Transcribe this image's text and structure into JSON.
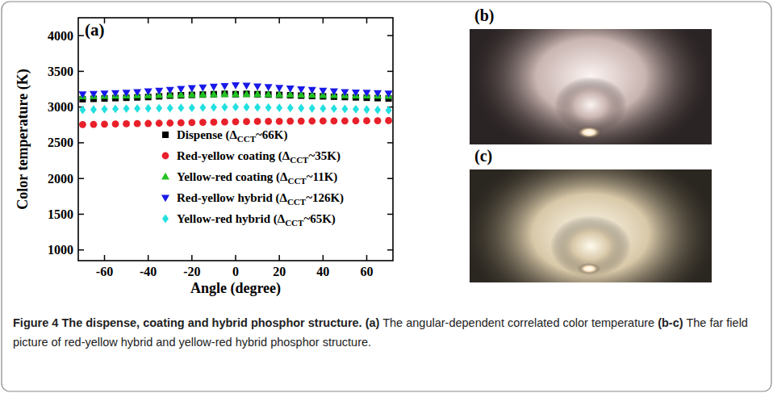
{
  "chart_data": {
    "type": "scatter",
    "x_label": "Angle (degree)",
    "y_label": "Color temperature (K)",
    "x": [
      -70,
      -65,
      -60,
      -55,
      -50,
      -45,
      -40,
      -35,
      -30,
      -25,
      -20,
      -15,
      -10,
      -5,
      0,
      5,
      10,
      15,
      20,
      25,
      30,
      35,
      40,
      45,
      50,
      55,
      60,
      65,
      70
    ],
    "xlim": [
      -72,
      72
    ],
    "xticks": [
      -60,
      -40,
      -20,
      0,
      20,
      40,
      60
    ],
    "ylim": [
      850,
      4250
    ],
    "yticks": [
      1000,
      1500,
      2000,
      2500,
      3000,
      3500,
      4000
    ],
    "grid": false,
    "legend": "center left",
    "series": [
      {
        "name": "Dispense (ΔCCT~66K)",
        "color": "#000000",
        "marker": "square",
        "values": [
          3110,
          3115,
          3120,
          3125,
          3130,
          3135,
          3140,
          3150,
          3160,
          3165,
          3170,
          3175,
          3180,
          3185,
          3180,
          3185,
          3180,
          3175,
          3170,
          3165,
          3160,
          3155,
          3150,
          3145,
          3140,
          3135,
          3130,
          3125,
          3120
        ]
      },
      {
        "name": "Red-yellow coating (ΔCCT~35K)",
        "color": "#e8202a",
        "marker": "circle",
        "values": [
          2755,
          2758,
          2760,
          2763,
          2765,
          2768,
          2770,
          2773,
          2776,
          2780,
          2783,
          2786,
          2789,
          2792,
          2795,
          2797,
          2799,
          2800,
          2801,
          2802,
          2803,
          2804,
          2805,
          2806,
          2806,
          2807,
          2808,
          2809,
          2810
        ]
      },
      {
        "name": "Yellow-red coating (ΔCCT~11K)",
        "color": "#22c322",
        "marker": "triangle-up",
        "values": [
          3150,
          3152,
          3155,
          3158,
          3160,
          3163,
          3165,
          3168,
          3170,
          3172,
          3174,
          3176,
          3178,
          3180,
          3180,
          3181,
          3180,
          3178,
          3176,
          3174,
          3172,
          3170,
          3168,
          3166,
          3164,
          3162,
          3160,
          3158,
          3156
        ]
      },
      {
        "name": "Red-yellow hybrid (ΔCCT~126K)",
        "color": "#1818e8",
        "marker": "triangle-down",
        "values": [
          3180,
          3185,
          3190,
          3195,
          3200,
          3210,
          3220,
          3230,
          3240,
          3255,
          3265,
          3275,
          3285,
          3295,
          3305,
          3300,
          3290,
          3280,
          3270,
          3260,
          3250,
          3240,
          3230,
          3220,
          3210,
          3205,
          3200,
          3195,
          3190
        ]
      },
      {
        "name": "Yellow-red hybrid (ΔCCT~65K)",
        "color": "#22e0e0",
        "marker": "diamond",
        "values": [
          2960,
          2965,
          2970,
          2975,
          2978,
          2980,
          2982,
          2984,
          2986,
          2988,
          2990,
          2992,
          2995,
          2998,
          3000,
          2998,
          2995,
          2992,
          2990,
          2988,
          2985,
          2982,
          2980,
          2978,
          2975,
          2970,
          2965,
          2960,
          2955
        ]
      }
    ]
  },
  "panel_labels": [
    "(a)",
    "(b)",
    "(c)"
  ],
  "caption": {
    "label": "Figure 4",
    "title": "The dispense, coating and hybrid phosphor structure.",
    "items": [
      {
        "tag": "(a)",
        "text": "The angular-dependent correlated color temperature"
      },
      {
        "tag": "(b-c)",
        "text": "The far field picture of red-yellow hybrid and yellow-red hybrid phosphor structure."
      }
    ]
  }
}
